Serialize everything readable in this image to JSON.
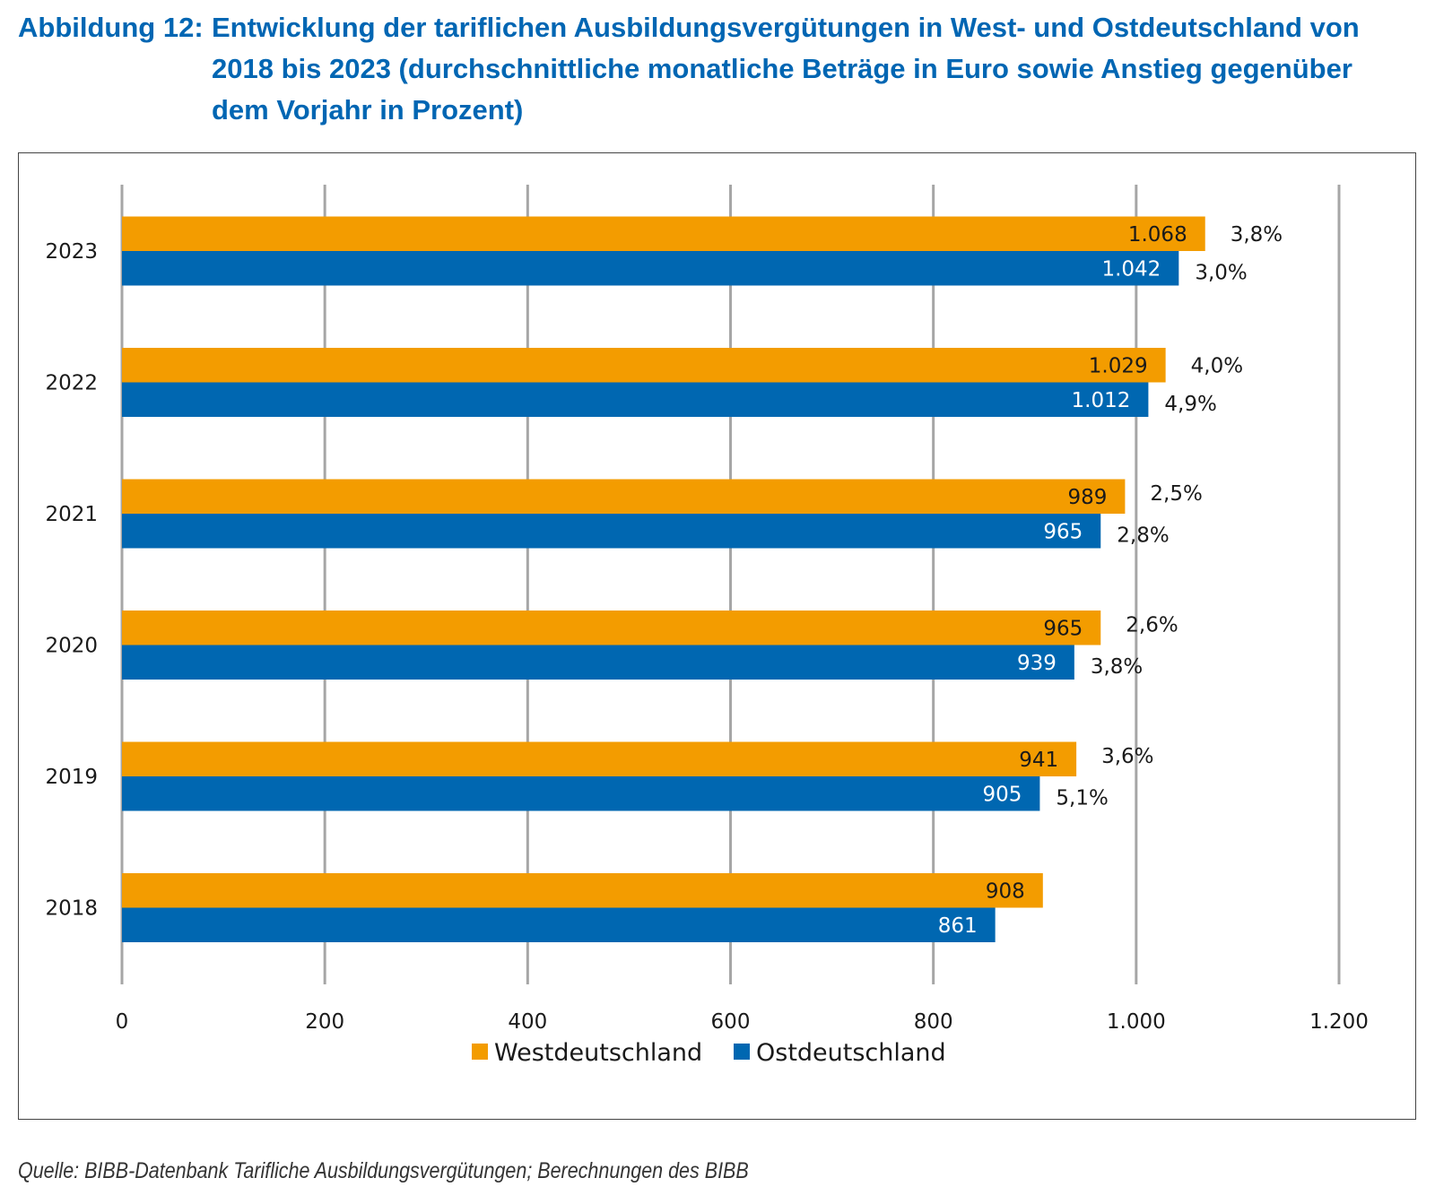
{
  "title": {
    "prefix": "Abbildung 12:",
    "text": "Entwicklung der tariflichen Ausbildungsvergütungen in West- und Ostdeutschland von 2018 bis 2023 (durchschnittliche monatliche Beträge in Euro sowie Anstieg gegenüber dem Vorjahr in Prozent)"
  },
  "source": "Quelle: BIBB-Datenbank Tarifliche Ausbildungsvergütungen; Berechnungen des BIBB",
  "chart_data": {
    "type": "bar",
    "orientation": "horizontal",
    "title": "Entwicklung der tariflichen Ausbildungsvergütungen in West- und Ostdeutschland von 2018 bis 2023 (durchschnittliche monatliche Beträge in Euro sowie Anstieg gegenüber dem Vorjahr in Prozent)",
    "xlabel": "",
    "ylabel": "",
    "categories": [
      "2023",
      "2022",
      "2021",
      "2020",
      "2019",
      "2018"
    ],
    "series": [
      {
        "name": "Westdeutschland",
        "color": "#f39c00",
        "label_color": "#1a1a1a",
        "values": [
          1068,
          1029,
          989,
          965,
          941,
          908
        ],
        "value_labels": [
          "1.068",
          "1.029",
          "989",
          "965",
          "941",
          "908"
        ],
        "change_labels": [
          "3,8%",
          "4,0%",
          "2,5%",
          "2,6%",
          "3,6%",
          ""
        ]
      },
      {
        "name": "Ostdeutschland",
        "color": "#0067b1",
        "label_color": "#ffffff",
        "values": [
          1042,
          1012,
          965,
          939,
          905,
          861
        ],
        "value_labels": [
          "1.042",
          "1.012",
          "965",
          "939",
          "905",
          "861"
        ],
        "change_labels": [
          "3,0%",
          "4,9%",
          "2,8%",
          "3,8%",
          "5,1%",
          ""
        ]
      }
    ],
    "xlim": [
      0,
      1200
    ],
    "xticks": [
      0,
      200,
      400,
      600,
      800,
      1000,
      1200
    ],
    "xtick_labels": [
      "0",
      "200",
      "400",
      "600",
      "800",
      "1.000",
      "1.200"
    ],
    "grid": "vertical",
    "grid_color": "#a6a6a6",
    "legend": {
      "placement": "bottom-center",
      "entries": [
        "Westdeutschland",
        "Ostdeutschland"
      ]
    }
  }
}
